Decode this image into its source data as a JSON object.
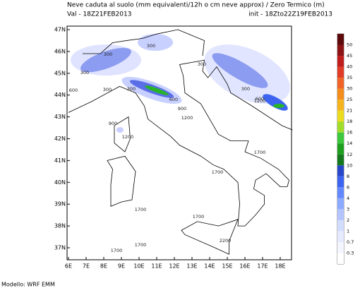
{
  "header": {
    "title": "Neve caduta al suolo (mm equivalenti/12h o cm neve approx) / Zero Termico (m)",
    "valid": "Val -  18Z21FEB2013",
    "init": "init - 18Zto22Z19FEB2013"
  },
  "map": {
    "lat_labels": [
      "47N",
      "46N",
      "45N",
      "44N",
      "43N",
      "42N",
      "41N",
      "40N",
      "39N",
      "38N",
      "37N"
    ],
    "lon_labels": [
      "6E",
      "7E",
      "8E",
      "9E",
      "10E",
      "11E",
      "12E",
      "13E",
      "14E",
      "15E",
      "16E",
      "17E",
      "18E"
    ],
    "contour_labels": [
      "300",
      "300",
      "300",
      "300",
      "300",
      "300",
      "300",
      "600",
      "600",
      "600",
      "900",
      "900",
      "1200",
      "1200",
      "1200",
      "1700",
      "1700",
      "1700",
      "1700",
      "1700",
      "1700",
      "2200"
    ]
  },
  "legend": {
    "labels": [
      "50",
      "45",
      "40",
      "35",
      "30",
      "25",
      "21",
      "18",
      "16",
      "14",
      "12",
      "10",
      "8",
      "6",
      "4",
      "3",
      "2",
      "1",
      "0.7",
      "0.3"
    ],
    "colors": [
      "#5c0a0a",
      "#8c1414",
      "#c01e1e",
      "#e03c28",
      "#f06428",
      "#f58c1e",
      "#f5b41e",
      "#ebdc1e",
      "#a0dc28",
      "#3cc83c",
      "#1ea01e",
      "#14781e",
      "#2846c8",
      "#3c64f0",
      "#6488ff",
      "#8caaff",
      "#b4c4ff",
      "#d2dcff",
      "#e6eaff",
      "#f3f5ff",
      "#ffffff"
    ]
  },
  "footer": {
    "model": "Modello: WRF EMM"
  }
}
